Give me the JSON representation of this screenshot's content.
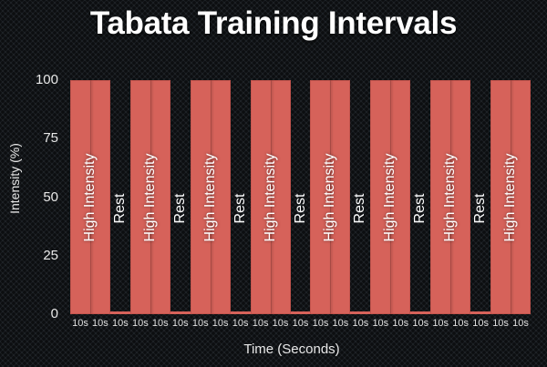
{
  "chart_data": {
    "type": "bar",
    "title": "Tabata Training Intervals",
    "xlabel": "Time (Seconds)",
    "ylabel": "Intensity (%)",
    "ylim": [
      0,
      100
    ],
    "yticks": [
      "0",
      "25",
      "50",
      "75",
      "100"
    ],
    "grid": false,
    "legend": null,
    "categories": [
      "10s",
      "10s",
      "10s",
      "10s",
      "10s",
      "10s",
      "10s",
      "10s",
      "10s",
      "10s",
      "10s",
      "10s",
      "10s",
      "10s",
      "10s",
      "10s",
      "10s",
      "10s",
      "10s",
      "10s",
      "10s",
      "10s",
      "10s"
    ],
    "segments": [
      {
        "label": "High Intensity",
        "slots": 2,
        "value": 100
      },
      {
        "label": "Rest",
        "slots": 1,
        "value": 1
      },
      {
        "label": "High Intensity",
        "slots": 2,
        "value": 100
      },
      {
        "label": "Rest",
        "slots": 1,
        "value": 1
      },
      {
        "label": "High Intensity",
        "slots": 2,
        "value": 100
      },
      {
        "label": "Rest",
        "slots": 1,
        "value": 1
      },
      {
        "label": "High Intensity",
        "slots": 2,
        "value": 100
      },
      {
        "label": "Rest",
        "slots": 1,
        "value": 1
      },
      {
        "label": "High Intensity",
        "slots": 2,
        "value": 100
      },
      {
        "label": "Rest",
        "slots": 1,
        "value": 1
      },
      {
        "label": "High Intensity",
        "slots": 2,
        "value": 100
      },
      {
        "label": "Rest",
        "slots": 1,
        "value": 1
      },
      {
        "label": "High Intensity",
        "slots": 2,
        "value": 100
      },
      {
        "label": "Rest",
        "slots": 1,
        "value": 1
      },
      {
        "label": "High Intensity",
        "slots": 2,
        "value": 100
      }
    ],
    "values": [
      100,
      100,
      1,
      100,
      100,
      1,
      100,
      100,
      1,
      100,
      100,
      1,
      100,
      100,
      1,
      100,
      100,
      1,
      100,
      100,
      1,
      100,
      100
    ],
    "colors": {
      "bar": "#d6625a",
      "background": "#1d2125",
      "text": "#ffffff"
    }
  }
}
